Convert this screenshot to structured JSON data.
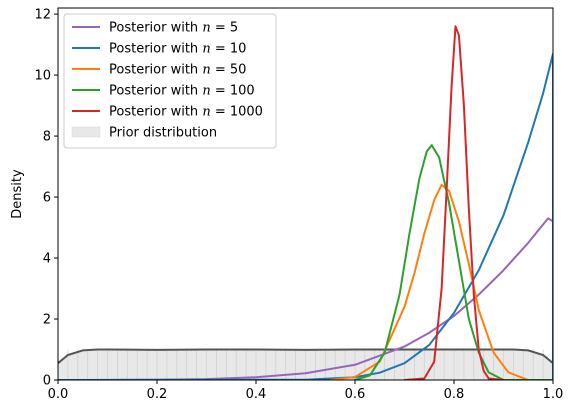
{
  "chart_data": {
    "type": "line",
    "xlabel": "",
    "ylabel": "Density",
    "xlim": [
      0.0,
      1.0
    ],
    "ylim": [
      0,
      12.2
    ],
    "xticks": [
      "0.0",
      "0.2",
      "0.4",
      "0.6",
      "0.8",
      "1.0"
    ],
    "yticks": [
      "0",
      "2",
      "4",
      "6",
      "8",
      "10",
      "12"
    ],
    "grid": false,
    "legend_position": "top-left",
    "prior": {
      "label": "Prior distribution",
      "fill_color": "#e8e8e8",
      "line_color": "#555555",
      "x": [
        0.0,
        0.02,
        0.05,
        0.08,
        0.1,
        0.2,
        0.3,
        0.4,
        0.5,
        0.6,
        0.7,
        0.8,
        0.9,
        0.92,
        0.95,
        0.98,
        1.0
      ],
      "y": [
        0.55,
        0.82,
        0.97,
        1.0,
        1.0,
        0.99,
        1.0,
        1.0,
        0.99,
        1.0,
        1.0,
        1.0,
        1.0,
        1.0,
        0.97,
        0.82,
        0.55
      ]
    },
    "series": [
      {
        "name_prefix": "Posterior with ",
        "name_math": "n",
        "name_suffix": " = 5",
        "color": "#9467bd",
        "x": [
          0.0,
          0.1,
          0.2,
          0.3,
          0.4,
          0.5,
          0.6,
          0.7,
          0.75,
          0.8,
          0.85,
          0.9,
          0.95,
          0.99,
          1.0
        ],
        "y": [
          0.0,
          0.0,
          0.01,
          0.03,
          0.09,
          0.22,
          0.5,
          1.1,
          1.55,
          2.1,
          2.8,
          3.6,
          4.5,
          5.3,
          5.2
        ]
      },
      {
        "name_prefix": "Posterior with ",
        "name_math": "n",
        "name_suffix": " = 10",
        "color": "#1f77b4",
        "x": [
          0.0,
          0.5,
          0.6,
          0.65,
          0.7,
          0.75,
          0.8,
          0.85,
          0.9,
          0.95,
          0.98,
          1.0,
          1.0
        ],
        "y": [
          0.0,
          0.01,
          0.09,
          0.24,
          0.55,
          1.15,
          2.2,
          3.6,
          5.4,
          7.8,
          9.4,
          10.7,
          0.0
        ]
      },
      {
        "name_prefix": "Posterior with ",
        "name_math": "n",
        "name_suffix": " = 50",
        "color": "#ff7f0e",
        "x": [
          0.55,
          0.6,
          0.65,
          0.7,
          0.72,
          0.74,
          0.76,
          0.775,
          0.79,
          0.81,
          0.83,
          0.85,
          0.88,
          0.91,
          0.95,
          1.0
        ],
        "y": [
          0.0,
          0.1,
          0.6,
          2.4,
          3.5,
          4.8,
          5.9,
          6.4,
          6.2,
          5.2,
          3.8,
          2.3,
          0.9,
          0.25,
          0.0,
          0.0
        ]
      },
      {
        "name_prefix": "Posterior with ",
        "name_math": "n",
        "name_suffix": " = 100",
        "color": "#2ca02c",
        "x": [
          0.6,
          0.63,
          0.66,
          0.69,
          0.71,
          0.73,
          0.745,
          0.755,
          0.77,
          0.79,
          0.81,
          0.83,
          0.85,
          0.87,
          0.9,
          1.0
        ],
        "y": [
          0.0,
          0.15,
          0.9,
          2.8,
          4.8,
          6.6,
          7.5,
          7.7,
          7.3,
          5.8,
          3.9,
          2.0,
          0.9,
          0.25,
          0.0,
          0.0
        ]
      },
      {
        "name_prefix": "Posterior with ",
        "name_math": "n",
        "name_suffix": " = 1000",
        "color": "#d62728",
        "x": [
          0.7,
          0.74,
          0.76,
          0.775,
          0.785,
          0.795,
          0.803,
          0.81,
          0.82,
          0.83,
          0.84,
          0.85,
          0.86,
          0.87,
          0.9
        ],
        "y": [
          0.0,
          0.05,
          0.6,
          3.0,
          6.2,
          9.6,
          11.6,
          11.3,
          9.0,
          5.6,
          2.8,
          1.0,
          0.3,
          0.05,
          0.0
        ]
      }
    ]
  }
}
